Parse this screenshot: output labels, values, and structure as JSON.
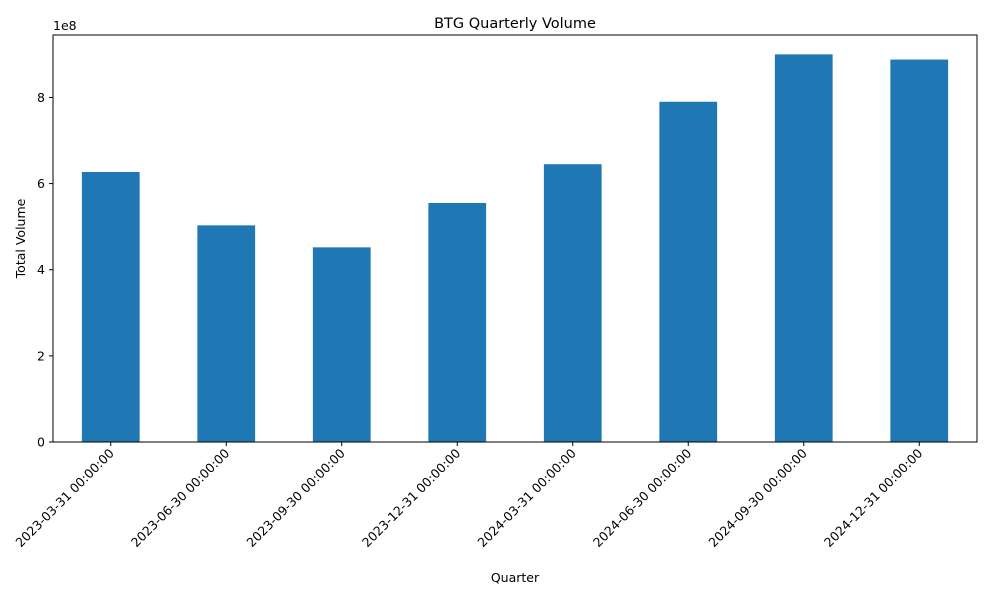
{
  "chart_data": {
    "type": "bar",
    "title": "BTG Quarterly Volume",
    "xlabel": "Quarter",
    "ylabel": "Total Volume",
    "y_offset_label": "1e8",
    "y_scale_factor": 100000000,
    "categories": [
      "2023-03-31 00:00:00",
      "2023-06-30 00:00:00",
      "2023-09-30 00:00:00",
      "2023-12-31 00:00:00",
      "2024-03-31 00:00:00",
      "2024-06-30 00:00:00",
      "2024-09-30 00:00:00",
      "2024-12-31 00:00:00"
    ],
    "values": [
      627000000,
      503000000,
      452000000,
      555000000,
      645000000,
      790000000,
      900000000,
      888000000
    ],
    "ylim": [
      0,
      945000000
    ],
    "yticks": [
      0,
      200000000,
      400000000,
      600000000,
      800000000
    ],
    "ytick_labels": [
      "0",
      "2",
      "4",
      "6",
      "8"
    ],
    "bar_color": "#1f77b4",
    "grid": false,
    "legend": false
  }
}
